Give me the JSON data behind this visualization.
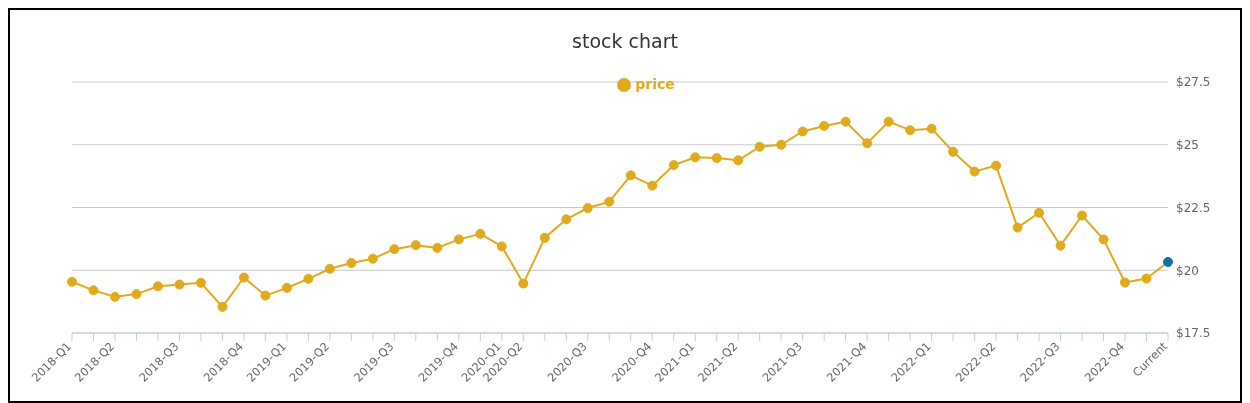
{
  "chart_data": {
    "type": "line",
    "title": "stock chart",
    "categories": [
      "2018-Q1",
      null,
      "2018-Q2",
      null,
      null,
      "2018-Q3",
      null,
      null,
      "2018-Q4",
      null,
      "2019-Q1",
      null,
      "2019-Q2",
      null,
      null,
      "2019-Q3",
      null,
      null,
      "2019-Q4",
      null,
      "2020-Q1",
      "2020-Q2",
      null,
      null,
      "2020-Q3",
      null,
      null,
      "2020-Q4",
      null,
      "2021-Q1",
      null,
      "2021-Q2",
      null,
      null,
      "2021-Q3",
      null,
      null,
      "2021-Q4",
      null,
      null,
      "2022-Q1",
      null,
      null,
      "2022-Q2",
      null,
      null,
      "2022-Q3",
      null,
      null,
      "2022-Q4",
      null,
      "Current"
    ],
    "series": [
      {
        "name": "price",
        "color": "#e0aa1c",
        "colors": [
          "#e0aa1c",
          "#e0aa1c",
          "#e0aa1c",
          "#e0aa1c",
          "#e0aa1c",
          "#e0aa1c",
          "#e0aa1c",
          "#e0aa1c",
          "#e0aa1c",
          "#e0aa1c",
          "#e0aa1c",
          "#e0aa1c",
          "#e0aa1c",
          "#e0aa1c",
          "#e0aa1c",
          "#e0aa1c",
          "#e0aa1c",
          "#e0aa1c",
          "#e0aa1c",
          "#e0aa1c",
          "#e0aa1c",
          "#e0aa1c",
          "#e0aa1c",
          "#e0aa1c",
          "#e0aa1c",
          "#e0aa1c",
          "#e0aa1c",
          "#e0aa1c",
          "#e0aa1c",
          "#e0aa1c",
          "#e0aa1c",
          "#e0aa1c",
          "#e0aa1c",
          "#e0aa1c",
          "#e0aa1c",
          "#e0aa1c",
          "#e0aa1c",
          "#e0aa1c",
          "#e0aa1c",
          "#e0aa1c",
          "#e0aa1c",
          "#e0aa1c",
          "#e0aa1c",
          "#e0aa1c",
          "#e0aa1c",
          "#e0aa1c",
          "#e0aa1c",
          "#e0aa1c",
          "#e0aa1c",
          "#e0aa1c",
          "#e0aa1c",
          "#1470a8"
        ],
        "values": [
          19.54,
          19.2,
          18.94,
          19.05,
          19.36,
          19.43,
          19.5,
          18.54,
          19.71,
          18.99,
          19.3,
          19.66,
          20.06,
          20.29,
          20.46,
          20.84,
          21.0,
          20.89,
          21.23,
          21.45,
          20.95,
          19.47,
          21.29,
          22.03,
          22.48,
          22.73,
          23.78,
          23.37,
          24.19,
          24.5,
          24.47,
          24.38,
          24.92,
          25.0,
          25.53,
          25.75,
          25.92,
          25.06,
          25.92,
          25.58,
          25.64,
          24.72,
          23.93,
          24.17,
          21.7,
          22.29,
          20.98,
          22.18,
          21.23,
          19.51,
          19.67,
          20.33
        ]
      }
    ],
    "ylim": [
      17.5,
      27.5
    ],
    "yticks": [
      {
        "value": 17.5,
        "label": "$17.5"
      },
      {
        "value": 20,
        "label": "$20"
      },
      {
        "value": 22.5,
        "label": "$22.5"
      },
      {
        "value": 25,
        "label": "$25"
      },
      {
        "value": 27.5,
        "label": "$27.5"
      }
    ],
    "grid": "y",
    "legend": "top",
    "marker": "circle",
    "line_style": "solid"
  }
}
